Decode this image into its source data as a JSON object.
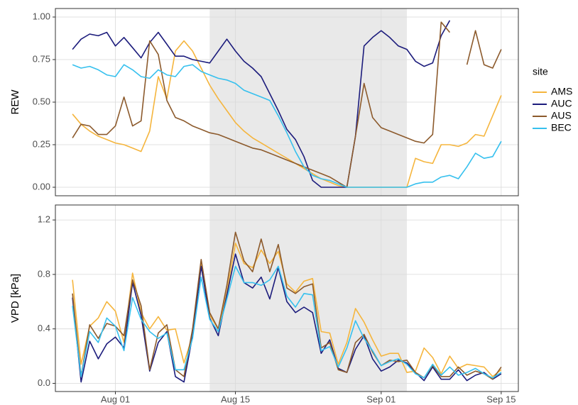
{
  "chart_data": [
    {
      "type": "line",
      "y_label": "REW",
      "x": [
        "Jul 27",
        "Jul 28",
        "Jul 29",
        "Jul 30",
        "Jul 31",
        "Aug 01",
        "Aug 02",
        "Aug 03",
        "Aug 04",
        "Aug 05",
        "Aug 06",
        "Aug 07",
        "Aug 08",
        "Aug 09",
        "Aug 10",
        "Aug 11",
        "Aug 12",
        "Aug 13",
        "Aug 14",
        "Aug 15",
        "Aug 16",
        "Aug 17",
        "Aug 18",
        "Aug 19",
        "Aug 20",
        "Aug 21",
        "Aug 22",
        "Aug 23",
        "Aug 24",
        "Aug 25",
        "Aug 26",
        "Aug 27",
        "Aug 28",
        "Aug 29",
        "Aug 30",
        "Aug 31",
        "Sep 01",
        "Sep 02",
        "Sep 03",
        "Sep 04",
        "Sep 05",
        "Sep 06",
        "Sep 07",
        "Sep 08",
        "Sep 09",
        "Sep 10",
        "Sep 11",
        "Sep 12",
        "Sep 13",
        "Sep 14",
        "Sep 15"
      ],
      "xlim": [
        "Jul 25",
        "Sep 17"
      ],
      "xticks": [
        "Aug 01",
        "Aug 15",
        "Sep 01",
        "Sep 15"
      ],
      "ylim": [
        -0.05,
        1.05
      ],
      "yticks": [
        {
          "value": 0,
          "label": "0.00"
        },
        {
          "value": 0.25,
          "label": "0.25"
        },
        {
          "value": 0.5,
          "label": "0.50"
        },
        {
          "value": 0.75,
          "label": "0.75"
        },
        {
          "value": 1,
          "label": "1.00"
        }
      ],
      "grid": true,
      "highlight_range": [
        "Aug 12",
        "Sep 04"
      ],
      "legend": "right",
      "legend_title": "site",
      "series": [
        {
          "name": "AMS",
          "color": "#f5b53d",
          "values": [
            0.43,
            0.37,
            0.33,
            0.3,
            0.28,
            0.26,
            0.25,
            0.23,
            0.21,
            0.33,
            0.65,
            0.52,
            0.8,
            0.86,
            0.8,
            0.7,
            0.6,
            0.52,
            0.45,
            0.38,
            0.33,
            0.29,
            0.26,
            0.23,
            0.2,
            0.17,
            0.14,
            0.11,
            0.08,
            0.05,
            0.03,
            0.01,
            0.0,
            0.0,
            0.0,
            0.0,
            0.0,
            0.0,
            0.0,
            0.0,
            0.17,
            0.15,
            0.14,
            0.25,
            0.25,
            0.24,
            0.26,
            0.31,
            0.3,
            0.42,
            0.54
          ]
        },
        {
          "name": "AUC",
          "color": "#1c1c7c",
          "values": [
            0.81,
            0.87,
            0.9,
            0.89,
            0.91,
            0.83,
            0.88,
            0.82,
            0.76,
            0.85,
            0.91,
            0.84,
            0.77,
            0.77,
            0.75,
            0.74,
            0.73,
            0.8,
            0.87,
            0.8,
            0.74,
            0.7,
            0.65,
            0.55,
            0.45,
            0.34,
            0.28,
            0.18,
            0.04,
            0.0,
            0.0,
            0.0,
            0.0,
            0.3,
            0.83,
            0.88,
            0.92,
            0.88,
            0.83,
            0.81,
            0.74,
            0.71,
            0.73,
            0.89,
            0.98,
            null,
            null,
            null,
            null,
            null,
            null
          ]
        },
        {
          "name": "AUS",
          "color": "#8c5a2c",
          "values": [
            0.29,
            0.37,
            0.36,
            0.31,
            0.31,
            0.36,
            0.53,
            0.36,
            0.39,
            0.86,
            0.78,
            0.51,
            0.41,
            0.39,
            0.36,
            0.34,
            0.32,
            0.31,
            0.29,
            0.27,
            0.25,
            0.23,
            0.22,
            0.2,
            0.18,
            0.16,
            0.14,
            0.12,
            0.1,
            0.08,
            0.06,
            0.03,
            0.0,
            0.3,
            0.61,
            0.41,
            0.35,
            0.33,
            0.31,
            0.29,
            0.27,
            0.26,
            0.31,
            0.97,
            0.91,
            null,
            0.72,
            0.92,
            0.72,
            0.7,
            0.81
          ]
        },
        {
          "name": "BEC",
          "color": "#36c0ee",
          "values": [
            0.72,
            0.7,
            0.71,
            0.69,
            0.66,
            0.65,
            0.72,
            0.69,
            0.65,
            0.64,
            0.69,
            0.66,
            0.65,
            0.71,
            0.72,
            0.68,
            0.66,
            0.64,
            0.63,
            0.61,
            0.57,
            0.55,
            0.53,
            0.51,
            0.42,
            0.32,
            0.21,
            0.12,
            0.07,
            0.05,
            0.04,
            0.02,
            0.0,
            0.0,
            0.0,
            0.0,
            0.0,
            0.0,
            0.0,
            0.0,
            0.02,
            0.03,
            0.03,
            0.06,
            0.07,
            0.05,
            0.12,
            0.2,
            0.17,
            0.18,
            0.27
          ]
        }
      ]
    },
    {
      "type": "line",
      "y_label": "VPD [kPa]",
      "x": [
        "Jul 27",
        "Jul 28",
        "Jul 29",
        "Jul 30",
        "Jul 31",
        "Aug 01",
        "Aug 02",
        "Aug 03",
        "Aug 04",
        "Aug 05",
        "Aug 06",
        "Aug 07",
        "Aug 08",
        "Aug 09",
        "Aug 10",
        "Aug 11",
        "Aug 12",
        "Aug 13",
        "Aug 14",
        "Aug 15",
        "Aug 16",
        "Aug 17",
        "Aug 18",
        "Aug 19",
        "Aug 20",
        "Aug 21",
        "Aug 22",
        "Aug 23",
        "Aug 24",
        "Aug 25",
        "Aug 26",
        "Aug 27",
        "Aug 28",
        "Aug 29",
        "Aug 30",
        "Aug 31",
        "Sep 01",
        "Sep 02",
        "Sep 03",
        "Sep 04",
        "Sep 05",
        "Sep 06",
        "Sep 07",
        "Sep 08",
        "Sep 09",
        "Sep 10",
        "Sep 11",
        "Sep 12",
        "Sep 13",
        "Sep 14",
        "Sep 15"
      ],
      "xlim": [
        "Jul 25",
        "Sep 17"
      ],
      "xticks": [
        "Aug 01",
        "Aug 15",
        "Sep 01",
        "Sep 15"
      ],
      "ylim": [
        -0.06,
        1.31
      ],
      "yticks": [
        {
          "value": 0,
          "label": "0.0"
        },
        0.4,
        0.8,
        1.2
      ],
      "grid": true,
      "highlight_range": [
        "Aug 12",
        "Sep 04"
      ],
      "series": [
        {
          "color": "#f5b53d",
          "values": [
            0.76,
            0.14,
            0.42,
            0.48,
            0.6,
            0.53,
            0.3,
            0.81,
            0.52,
            0.4,
            0.49,
            0.39,
            0.4,
            0.15,
            0.35,
            0.88,
            0.5,
            0.4,
            0.67,
            1.03,
            0.88,
            0.85,
            0.98,
            0.88,
            0.97,
            0.73,
            0.67,
            0.75,
            0.77,
            0.38,
            0.37,
            0.14,
            0.3,
            0.55,
            0.45,
            0.32,
            0.2,
            0.22,
            0.22,
            0.08,
            0.09,
            0.26,
            0.19,
            0.07,
            0.2,
            0.11,
            0.14,
            0.13,
            0.12,
            0.05,
            0.1
          ]
        },
        {
          "color": "#1c1c7c",
          "values": [
            0.63,
            0.01,
            0.31,
            0.18,
            0.29,
            0.34,
            0.26,
            0.74,
            0.5,
            0.09,
            0.3,
            0.38,
            0.05,
            0.01,
            0.35,
            0.86,
            0.48,
            0.35,
            0.65,
            0.95,
            0.74,
            0.7,
            0.78,
            0.62,
            0.85,
            0.6,
            0.52,
            0.56,
            0.52,
            0.22,
            0.32,
            0.11,
            0.08,
            0.25,
            0.35,
            0.18,
            0.09,
            0.12,
            0.17,
            0.15,
            0.08,
            0.02,
            0.12,
            0.03,
            0.03,
            0.1,
            0.02,
            0.06,
            0.08,
            0.03,
            0.07
          ]
        },
        {
          "color": "#8c5a2c",
          "values": [
            0.66,
            0.05,
            0.43,
            0.33,
            0.44,
            0.42,
            0.35,
            0.76,
            0.57,
            0.1,
            0.37,
            0.43,
            0.1,
            0.05,
            0.4,
            0.91,
            0.52,
            0.4,
            0.72,
            1.11,
            0.9,
            0.82,
            1.06,
            0.82,
            1.02,
            0.7,
            0.66,
            0.71,
            0.73,
            0.26,
            0.3,
            0.1,
            0.08,
            0.3,
            0.36,
            0.23,
            0.13,
            0.17,
            0.16,
            0.17,
            0.08,
            0.04,
            0.13,
            0.05,
            0.05,
            0.12,
            0.06,
            0.09,
            0.07,
            0.03,
            0.12
          ]
        },
        {
          "color": "#36c0ee",
          "values": [
            0.57,
            0.05,
            0.38,
            0.3,
            0.48,
            0.42,
            0.24,
            0.63,
            0.47,
            0.38,
            0.33,
            0.37,
            0.1,
            0.1,
            0.33,
            0.78,
            0.47,
            0.38,
            0.62,
            0.86,
            0.74,
            0.74,
            0.72,
            0.76,
            0.86,
            0.64,
            0.56,
            0.66,
            0.65,
            0.24,
            0.27,
            0.12,
            0.26,
            0.46,
            0.33,
            0.24,
            0.13,
            0.16,
            0.18,
            0.14,
            0.07,
            0.04,
            0.14,
            0.06,
            0.12,
            0.06,
            0.08,
            0.11,
            0.07,
            0.04,
            0.08
          ]
        }
      ]
    }
  ]
}
